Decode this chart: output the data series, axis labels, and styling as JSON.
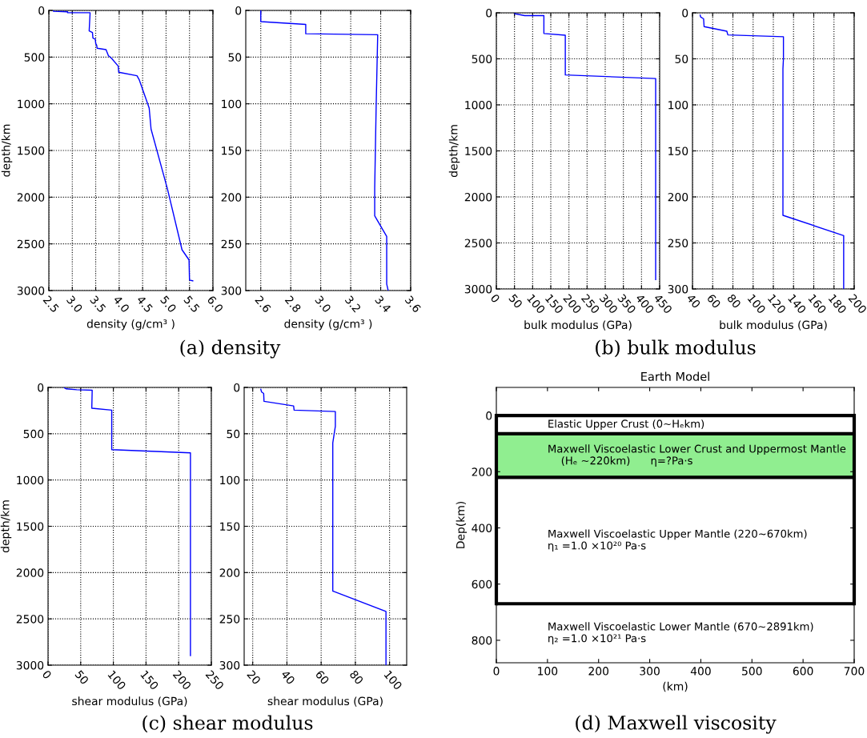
{
  "chart_data": [
    {
      "type": "line",
      "x": [
        2.6,
        2.6,
        2.9,
        2.9,
        3.38,
        3.36,
        3.43,
        3.44,
        3.49,
        3.5,
        3.52,
        3.53,
        3.72,
        3.77,
        3.84,
        3.98,
        3.99,
        4.38,
        4.43,
        4.64,
        4.68,
        5.03,
        5.34,
        5.49,
        5.5,
        5.57
      ],
      "values": [
        0,
        10,
        15,
        25,
        25,
        220,
        237,
        296,
        307,
        355,
        372,
        405,
        420,
        485,
        514,
        597,
        662,
        700,
        745,
        1046,
        1271,
        1912,
        2563,
        2672,
        2888,
        2896
      ],
      "color": "#0000ff",
      "xlim": [
        2.5,
        6.0
      ],
      "xticks": [
        2.5,
        {
          "value": 3,
          "label": "3.0"
        },
        3.5,
        {
          "value": 4,
          "label": "4.0"
        },
        4.5,
        {
          "value": 5,
          "label": "5.0"
        },
        5.5,
        {
          "value": 6,
          "label": "6.0"
        }
      ],
      "ylim": [
        3000,
        0
      ],
      "yticks": [
        0,
        500,
        1000,
        1500,
        2000,
        2500,
        3000
      ],
      "xlabel": "density (g/cm³ )",
      "ylabel": "depth/km",
      "grid": true,
      "annotations": [
        "(a) density"
      ]
    },
    {
      "type": "line",
      "x": [
        2.6,
        2.6,
        2.9,
        2.9,
        3.38,
        3.37,
        3.36,
        3.36,
        3.44,
        3.44,
        3.45
      ],
      "values": [
        0,
        12,
        15,
        25,
        26,
        100,
        190,
        220,
        242,
        293,
        300
      ],
      "color": "#0000ff",
      "xlim": [
        2.5,
        3.6
      ],
      "xticks": [
        2.6,
        2.8,
        {
          "value": 3,
          "label": "3.0"
        },
        3.2,
        3.4,
        3.6
      ],
      "ylim": [
        300,
        0
      ],
      "yticks": [
        0,
        50,
        100,
        150,
        200,
        250,
        300
      ],
      "xlabel": "density (g/cm³ )",
      "grid": true
    },
    {
      "type": "line",
      "x": [
        51,
        78,
        131,
        131,
        190,
        190,
        439,
        439
      ],
      "values": [
        10,
        30,
        30,
        225,
        243,
        675,
        714,
        2898
      ],
      "color": "#0000ff",
      "xlim": [
        0,
        450
      ],
      "xticks": [
        0,
        50,
        100,
        150,
        200,
        250,
        300,
        350,
        400,
        450
      ],
      "ylim": [
        3000,
        0
      ],
      "yticks": [
        0,
        500,
        1000,
        1500,
        2000,
        2500,
        3000
      ],
      "xlabel": "bulk modulus (GPa)",
      "ylabel": "depth/km",
      "grid": true,
      "annotations": [
        "(b) bulk modulus"
      ]
    },
    {
      "type": "line",
      "x": [
        47.6,
        48,
        51,
        51.5,
        74,
        75,
        130,
        130,
        129.5,
        129.5,
        189.6,
        189.6
      ],
      "values": [
        2.5,
        4.5,
        6.5,
        15,
        20,
        24,
        26,
        50,
        61,
        220,
        242,
        300
      ],
      "color": "#0000ff",
      "xlim": [
        40,
        200
      ],
      "xticks": [
        40,
        60,
        80,
        100,
        120,
        140,
        160,
        180,
        200
      ],
      "ylim": [
        300,
        0
      ],
      "yticks": [
        0,
        50,
        100,
        150,
        200,
        250,
        300
      ],
      "xlabel": "bulk modulus (GPa)",
      "grid": true
    },
    {
      "type": "line",
      "x": [
        25,
        27.5,
        44,
        67.6,
        67,
        97.5,
        97.5,
        218,
        218
      ],
      "values": [
        5,
        15,
        25,
        30,
        225,
        245,
        672,
        707,
        2896
      ],
      "color": "#0000ff",
      "xlim": [
        0,
        250
      ],
      "xticks": [
        0,
        50,
        100,
        150,
        200,
        250
      ],
      "ylim": [
        3000,
        0
      ],
      "yticks": [
        0,
        500,
        1000,
        1500,
        2000,
        2500,
        3000
      ],
      "xlabel": "shear modulus (GPa)",
      "ylabel": "depth/km",
      "grid": true,
      "annotations": [
        "(c) shear modulus"
      ]
    },
    {
      "type": "line",
      "x": [
        24.7,
        25.2,
        26.4,
        26.6,
        43.9,
        44.2,
        68.3,
        68.3,
        66.8,
        66.8,
        97.9,
        97.9
      ],
      "values": [
        2,
        5,
        6.5,
        15,
        20,
        24.5,
        26,
        42,
        60,
        220,
        242,
        300
      ],
      "color": "#0000ff",
      "xlim": [
        15,
        110
      ],
      "xticks": [
        20,
        40,
        60,
        80,
        100
      ],
      "ylim": [
        300,
        0
      ],
      "yticks": [
        0,
        50,
        100,
        150,
        200,
        250,
        300
      ],
      "xlabel": "shear modulus (GPa)",
      "grid": true
    },
    {
      "type": "line",
      "title": "Earth Model",
      "xlabel": "(km)",
      "ylabel": "Dep(km)",
      "xlim": [
        0,
        700
      ],
      "xticks": [
        0,
        100,
        200,
        300,
        400,
        500,
        600,
        700
      ],
      "ylim": [
        880,
        -100
      ],
      "yticks": [
        0,
        200,
        400,
        600,
        800
      ],
      "bands": [
        {
          "axis": "y",
          "from": 65,
          "to": 220,
          "color": "#90ee90"
        }
      ],
      "ref_lines": [
        {
          "axis": "y",
          "value": 0,
          "color": "#000000"
        },
        {
          "axis": "y",
          "value": 65,
          "color": "#000000"
        },
        {
          "axis": "y",
          "value": 220,
          "color": "#000000"
        },
        {
          "axis": "y",
          "value": 670,
          "color": "#000000"
        }
      ],
      "annotations": [
        "Elastic Upper Crust (0~Hₑkm)",
        "Maxwell Viscoelastic Lower Crust and Uppermost Mantle\n    (Hₑ ~220km)      η=?Pa·s",
        "Maxwell Viscoelastic Upper Mantle (220~670km)\nη₁ =1.0 ×10²⁰ Pa·s",
        "Maxwell Viscoelastic Lower Mantle (670~2891km)\nη₂ =1.0 ×10²¹ Pa·s",
        "(d) Maxwell viscosity"
      ]
    }
  ]
}
